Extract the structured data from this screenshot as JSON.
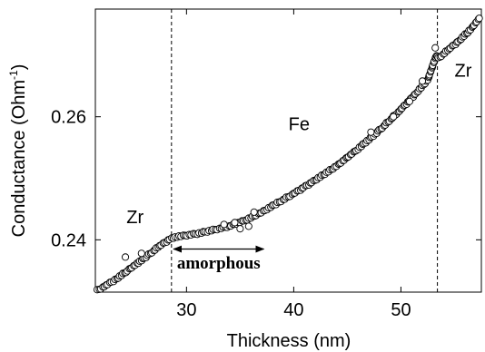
{
  "chart_data": {
    "type": "scatter",
    "xlabel": "Thickness (nm)",
    "ylabel": "Conductance (Ohm",
    "ylabel_sup": "-1",
    "ylabel_close": ")",
    "xlim": [
      21.5,
      57.5
    ],
    "ylim": [
      0.2315,
      0.2775
    ],
    "x_ticks": [
      {
        "value": 30,
        "label": "30"
      },
      {
        "value": 40,
        "label": "40"
      },
      {
        "value": 50,
        "label": "50"
      }
    ],
    "y_ticks": [
      {
        "value": 0.24,
        "label": "0.24"
      },
      {
        "value": 0.26,
        "label": "0.26"
      }
    ],
    "boundaries": [
      28.6,
      53.4
    ],
    "region_labels": [
      {
        "text": "Zr",
        "x": 25.2,
        "y": 0.2427
      },
      {
        "text": "Fe",
        "x": 40.5,
        "y": 0.2578
      },
      {
        "text": "Zr",
        "x": 55.8,
        "y": 0.2665
      }
    ],
    "annotation": {
      "text": "amorphous",
      "arrow_from_x": 28.8,
      "arrow_to_x": 37.2,
      "arrow_y": 0.2385,
      "text_x": 33.0,
      "text_y": 0.2362
    },
    "series": [
      {
        "marker": "open-circle",
        "anchor_points": [
          [
            21.7,
            0.2318
          ],
          [
            22.5,
            0.2326
          ],
          [
            23.5,
            0.2337
          ],
          [
            24.5,
            0.235
          ],
          [
            25.5,
            0.2363
          ],
          [
            26.5,
            0.2376
          ],
          [
            27.5,
            0.239
          ],
          [
            28.6,
            0.2403
          ],
          [
            29.5,
            0.2406
          ],
          [
            31.0,
            0.241
          ],
          [
            32.5,
            0.2416
          ],
          [
            34.0,
            0.2422
          ],
          [
            35.5,
            0.2432
          ],
          [
            36.5,
            0.244
          ],
          [
            37.5,
            0.245
          ],
          [
            38.5,
            0.246
          ],
          [
            40.0,
            0.2475
          ],
          [
            42.0,
            0.2497
          ],
          [
            44.0,
            0.252
          ],
          [
            46.0,
            0.2548
          ],
          [
            48.0,
            0.2578
          ],
          [
            50.0,
            0.2612
          ],
          [
            51.5,
            0.264
          ],
          [
            52.5,
            0.266
          ],
          [
            53.3,
            0.27
          ],
          [
            53.5,
            0.2695
          ],
          [
            54.5,
            0.271
          ],
          [
            55.5,
            0.2725
          ],
          [
            56.5,
            0.2742
          ],
          [
            57.3,
            0.276
          ]
        ],
        "scattered_points": [
          [
            24.3,
            0.2372
          ],
          [
            25.8,
            0.2378
          ],
          [
            34.5,
            0.2428
          ],
          [
            35.0,
            0.2418
          ],
          [
            35.8,
            0.2422
          ],
          [
            36.3,
            0.2445
          ],
          [
            47.2,
            0.2575
          ],
          [
            50.8,
            0.2625
          ],
          [
            52.0,
            0.2658
          ],
          [
            53.2,
            0.2712
          ],
          [
            49.3,
            0.26
          ],
          [
            33.5,
            0.2425
          ]
        ]
      }
    ]
  }
}
